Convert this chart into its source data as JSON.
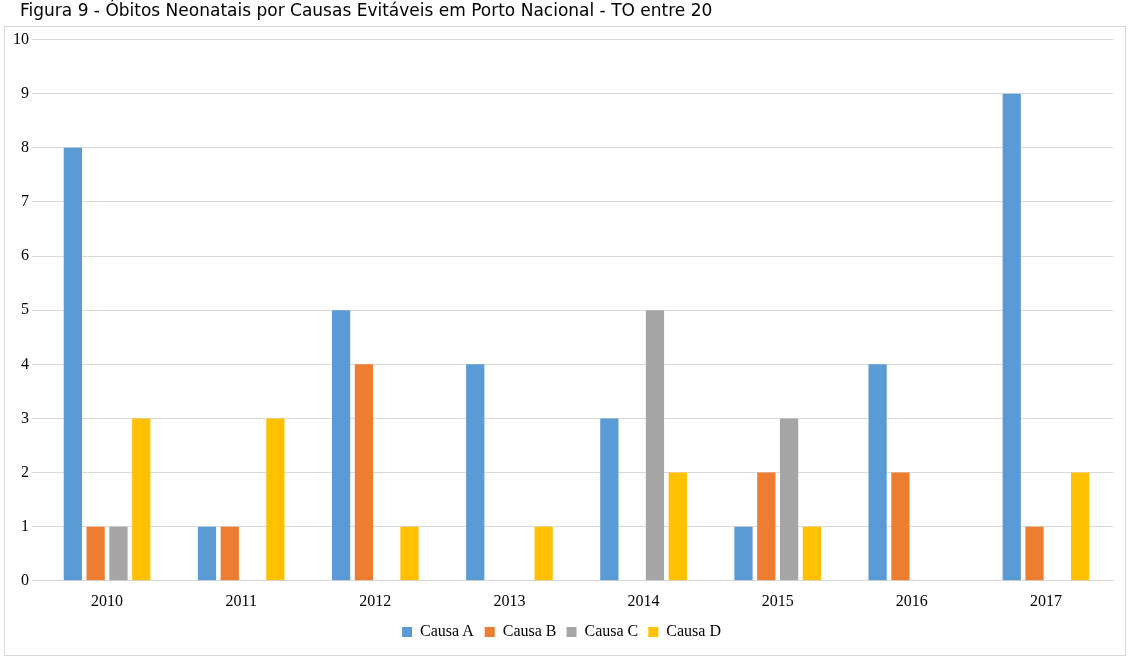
{
  "chart_data": {
    "type": "bar",
    "title": "Figura 9 - Óbitos Neonatais por Causas Evitáveis em Porto Nacional - TO entre 20",
    "categories": [
      "2010",
      "2011",
      "2012",
      "2013",
      "2014",
      "2015",
      "2016",
      "2017"
    ],
    "series": [
      {
        "name": "Causa A",
        "color": "#5b9bd5",
        "values": [
          8,
          1,
          5,
          4,
          3,
          1,
          4,
          9
        ]
      },
      {
        "name": "Causa B",
        "color": "#ed7d31",
        "values": [
          1,
          1,
          4,
          0,
          0,
          2,
          2,
          1
        ]
      },
      {
        "name": "Causa C",
        "color": "#a5a5a5",
        "values": [
          1,
          0,
          0,
          0,
          5,
          3,
          0,
          0
        ]
      },
      {
        "name": "Causa D",
        "color": "#ffc000",
        "values": [
          3,
          3,
          1,
          1,
          2,
          1,
          0,
          2
        ]
      }
    ],
    "ylim": [
      0,
      10
    ],
    "yticks": [
      0,
      1,
      2,
      3,
      4,
      5,
      6,
      7,
      8,
      9,
      10
    ],
    "grid": "y",
    "legend": "bottom"
  }
}
